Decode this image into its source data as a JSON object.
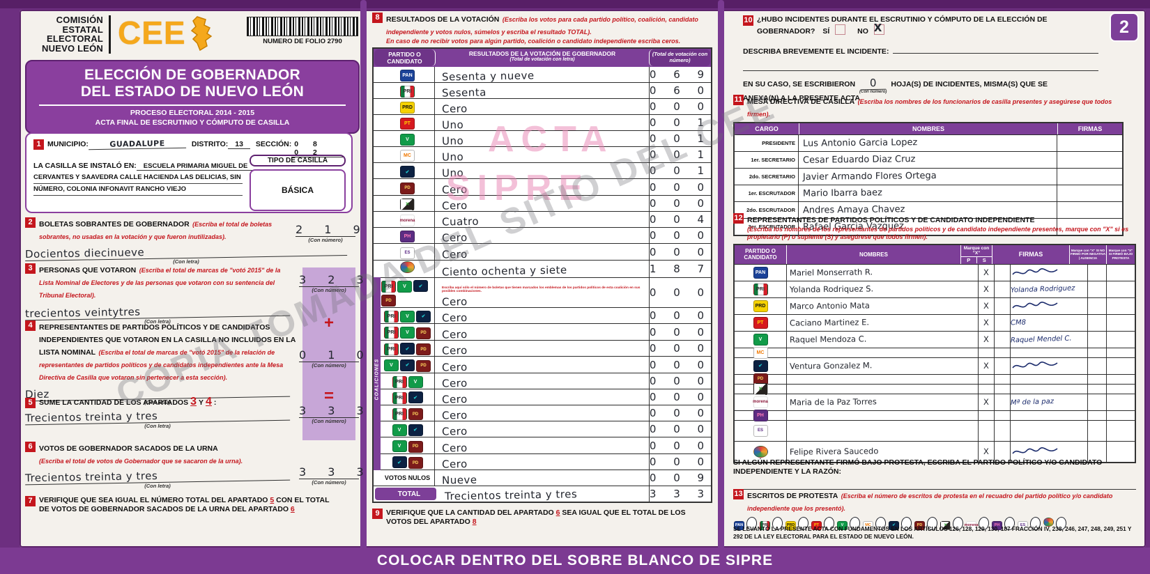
{
  "labels": {
    "con_letra": "(Con letra)",
    "con_numero": "(Con número)"
  },
  "colors": {
    "purple": "#7d3f98",
    "purple_dark": "#5e2170",
    "red": "#c4161d",
    "lilac": "#c7a6d7",
    "orange": "#f5a81c"
  },
  "watermarks": {
    "acta": "ACTA",
    "sipre": "SIPRE",
    "diagonal": "COPIA TOMADA DEL SITIO DEL CEE"
  },
  "page_badge": "2",
  "footer_band": "COLOCAR DENTRO DEL SOBRE BLANCO DE SIPRE",
  "header": {
    "org_name": "COMISIÓN ESTATAL ELECTORAL NUEVO LEÓN",
    "logo_text": "CEE",
    "folio_label": "NUMERO DE FOLIO 2790",
    "title_line1": "ELECCIÓN DE GOBERNADOR",
    "title_line2": "DEL ESTADO DE NUEVO LEÓN",
    "subtitle_line1": "PROCESO ELECTORAL  2014 - 2015",
    "subtitle_line2": "ACTA FINAL DE ESCRUTINIO Y CÓMPUTO DE CASILLA"
  },
  "parties": {
    "pan": {
      "label": "PAN",
      "name": "PAN",
      "color": "#1b4298"
    },
    "pri": {
      "label": "PRI",
      "name": "PRI",
      "color": "#0f7a3d"
    },
    "prd": {
      "label": "PRD",
      "name": "PRD",
      "color": "#f6d200"
    },
    "pt": {
      "label": "PT",
      "name": "PT",
      "color": "#d6191f"
    },
    "verde": {
      "label": "V",
      "name": "VERDE",
      "color": "#119b49"
    },
    "mc": {
      "label": "MC",
      "name": "MOVIMIENTO CIUDADANO",
      "color": "#f07800"
    },
    "alianza": {
      "label": "✔",
      "name": "alian2a",
      "color": "#0c2142"
    },
    "pd": {
      "label": "PD",
      "name": "PARTIDO DEMÓCRATA",
      "color": "#7c1b1b"
    },
    "cc": {
      "label": "✕",
      "name": "CRUZADA CIUDADANA",
      "color": "#26221f"
    },
    "morena": {
      "label": "morena",
      "name": "morena",
      "color": "#8a1538"
    },
    "ph": {
      "label": "PH",
      "name": "HUMANISTA",
      "color": "#5c2d83"
    },
    "es": {
      "label": "ES",
      "name": "ENCUENTRO SOCIAL",
      "color": "#5b2a84"
    },
    "indep": {
      "label": "",
      "name": "CANDIDATO INDEPENDIENTE",
      "color": "#3f9c44"
    }
  },
  "section1": {
    "number": "1",
    "municipio_label": "MUNICIPIO:",
    "municipio_value": "GUADALUPE",
    "distrito_label": "DISTRITO:",
    "distrito_value": "13",
    "seccion_label": "SECCIÓN:",
    "seccion_value": "0 8 0 2",
    "instalada_label": "LA CASILLA SE INSTALÓ EN:",
    "instalada_line1": "ESCUELA PRIMARIA MIGUEL DE",
    "instalada_line2": "CERVANTES Y SAAVEDRA CALLE HACIENDA LAS DELICIAS, SIN",
    "instalada_line3": "NÚMERO, COLONIA INFONAVIT RANCHO VIEJO",
    "tipo_label": "TIPO DE CASILLA",
    "tipo_value": "BÁSICA"
  },
  "section2": {
    "number": "2",
    "title": "BOLETAS SOBRANTES DE GOBERNADOR",
    "instr": "(Escriba el total de boletas sobrantes, no usadas en la votación y que fueron inutilizadas).",
    "letra": "Docientos diecinueve",
    "numero": "2 1 9"
  },
  "section3": {
    "number": "3",
    "title": "PERSONAS QUE VOTARON",
    "instr": "(Escriba el total de marcas de \"votó 2015\" de la Lista Nominal de Electores y de las personas que votaron con su sentencia del Tribunal Electoral).",
    "letra": "trecientos veintytres",
    "numero": "3 2 3"
  },
  "section4": {
    "number": "4",
    "title": "REPRESENTANTES DE PARTIDOS POLÍTICOS Y DE CANDIDATOS INDEPENDIENTES QUE VOTARON EN LA CASILLA NO INCLUIDOS EN LA LISTA NOMINAL",
    "instr": "(Escriba el total de marcas de \"votó 2015\" de la relación de representantes de partidos políticos y de candidatos independientes ante la Mesa Directiva de Casilla que votaron sin pertenecer a esta sección).",
    "letra": "Diez",
    "numero": "0 1 0",
    "plus": "+"
  },
  "section5": {
    "number": "5",
    "title_pre": "SUME LA CANTIDAD DE LOS APARTADOS",
    "ref1": "3",
    "mid": "Y",
    "ref2": "4",
    "colon": ":",
    "letra": "Trecientos treinta y tres",
    "numero": "3 3 3",
    "equals": "="
  },
  "section6": {
    "number": "6",
    "title": "VOTOS DE GOBERNADOR SACADOS DE LA URNA",
    "instr": "(Escriba el total de votos de Gobernador que se sacaron de la urna).",
    "letra": "Trecientos treinta y tres",
    "numero": "3 3 3"
  },
  "section7": {
    "number": "7",
    "text1": "VERIFIQUE QUE SEA IGUAL EL NÚMERO TOTAL DEL APARTADO",
    "ref1": "5",
    "text2": "CON EL TOTAL DE VOTOS DE GOBERNADOR SACADOS DE LA URNA DEL APARTADO",
    "ref2": "6"
  },
  "results": {
    "number": "8",
    "title": "RESULTADOS DE LA VOTACIÓN",
    "instr1": "(Escriba los votos para cada partido político, coalición, candidato independiente y votos nulos, súmelos y escriba el resultado TOTAL).",
    "instr2": "En caso de no recibir votos para algún partido, coalición o candidato independiente escriba ceros.",
    "col1": "PARTIDO O CANDIDATO",
    "col2": "RESULTADOS DE LA VOTACIÓN DE GOBERNADOR",
    "col2_sub": "(Total de votación con letra)",
    "col3": "(Total de votación con número)",
    "coaliciones_label": "COALICIONES",
    "rows": [
      {
        "parties": [
          "pan"
        ],
        "letra": "Sesenta y nueve",
        "numero": "0 6 9"
      },
      {
        "parties": [
          "pri"
        ],
        "letra": "Sesenta",
        "numero": "0 6 0"
      },
      {
        "parties": [
          "prd"
        ],
        "letra": "Cero",
        "numero": "0 0 0"
      },
      {
        "parties": [
          "pt"
        ],
        "letra": "Uno",
        "numero": "0 0 1"
      },
      {
        "parties": [
          "verde"
        ],
        "letra": "Uno",
        "numero": "0 0 1"
      },
      {
        "parties": [
          "mc"
        ],
        "letra": "Uno",
        "numero": "0 0 1"
      },
      {
        "parties": [
          "alianza"
        ],
        "letra": "Uno",
        "numero": "0 0 1"
      },
      {
        "parties": [
          "pd"
        ],
        "letra": "Cero",
        "numero": "0 0 0"
      },
      {
        "parties": [
          "cc"
        ],
        "letra": "Cero",
        "numero": "0 0 0"
      },
      {
        "parties": [
          "morena"
        ],
        "letra": "Cuatro",
        "numero": "0 0 4"
      },
      {
        "parties": [
          "ph"
        ],
        "letra": "Cero",
        "numero": "0 0 0"
      },
      {
        "parties": [
          "es"
        ],
        "letra": "Cero",
        "numero": "0 0 0"
      },
      {
        "parties": [
          "indep"
        ],
        "letra": "Ciento ochenta y siete",
        "numero": "1 8 7"
      },
      {
        "parties": [
          "pri",
          "verde",
          "alianza",
          "pd"
        ],
        "cls": "row-coal",
        "note": "Escriba aquí sólo el número de boletas que tienen marcados los emblemas de los partidos políticos de esta coalición en sus posibles combinaciones.",
        "letra": "Cero",
        "numero": "0 0 0"
      },
      {
        "parties": [
          "pri",
          "verde",
          "alianza"
        ],
        "cls": "row-coal",
        "letra": "Cero",
        "numero": "0 0 0"
      },
      {
        "parties": [
          "pri",
          "verde",
          "pd"
        ],
        "cls": "row-coal",
        "letra": "Cero",
        "numero": "0 0 0"
      },
      {
        "parties": [
          "pri",
          "alianza",
          "pd"
        ],
        "cls": "row-coal",
        "letra": "Cero",
        "numero": "0 0 0"
      },
      {
        "parties": [
          "verde",
          "alianza",
          "pd"
        ],
        "cls": "row-coal",
        "letra": "Cero",
        "numero": "0 0 0"
      },
      {
        "parties": [
          "pri",
          "verde"
        ],
        "cls": "row-coal",
        "letra": "Cero",
        "numero": "0 0 0"
      },
      {
        "parties": [
          "pri",
          "alianza"
        ],
        "cls": "row-coal",
        "letra": "Cero",
        "numero": "0 0 0"
      },
      {
        "parties": [
          "pri",
          "pd"
        ],
        "cls": "row-coal",
        "letra": "Cero",
        "numero": "0 0 0"
      },
      {
        "parties": [
          "verde",
          "alianza"
        ],
        "cls": "row-coal",
        "letra": "Cero",
        "numero": "0 0 0"
      },
      {
        "parties": [
          "verde",
          "pd"
        ],
        "cls": "row-coal",
        "letra": "Cero",
        "numero": "0 0 0"
      },
      {
        "parties": [
          "alianza",
          "pd"
        ],
        "cls": "row-coal",
        "letra": "Cero",
        "numero": "0 0 0"
      },
      {
        "label": "VOTOS NULOS",
        "letra": "Nueve",
        "numero": "0 0 9"
      },
      {
        "label": "TOTAL",
        "cls": "trow",
        "letra": "Trecientos treinta y tres",
        "numero": "3 3 3"
      }
    ]
  },
  "section9": {
    "number": "9",
    "text1": "VERIFIQUE QUE LA CANTIDAD DEL APARTADO",
    "ref1": "6",
    "text2": "SEA IGUAL QUE EL TOTAL DE LOS VOTOS DEL APARTADO",
    "ref2": "8"
  },
  "section10": {
    "number": "10",
    "question": "¿HUBO INCIDENTES DURANTE EL ESCRUTINIO Y CÓMPUTO DE LA ELECCIÓN DE GOBERNADOR?",
    "si": "SÍ",
    "no": "NO",
    "no_mark": "X",
    "describe_label": "DESCRIBA BREVEMENTE EL INCIDENTE:",
    "hojas_pre": "EN SU CASO, SE ESCRIBIERON",
    "hojas_value": "0",
    "hojas_post": "HOJA(S) DE INCIDENTES, MISMA(S) QUE SE",
    "hojas_post2": "ANEXA(N) A LA PRESENTE ACTA."
  },
  "mesa": {
    "number": "11",
    "title": "MESA DIRECTIVA DE CASILLA",
    "instr": "(Escriba los nombres de los funcionarios de casilla presentes y asegúrese que todos firmen).",
    "col1": "CARGO",
    "col2": "NOMBRES",
    "col3": "FIRMAS",
    "rows": [
      {
        "cargo": "PRESIDENTE",
        "nombre": "Lus Antonio Garcia Lopez"
      },
      {
        "cargo": "1er. SECRETARIO",
        "nombre": "Cesar Eduardo Diaz Cruz"
      },
      {
        "cargo": "2do. SECRETARIO",
        "nombre": "Javier Armando Flores Ortega"
      },
      {
        "cargo": "1er. ESCRUTADOR",
        "nombre": "Mario Ibarra baez"
      },
      {
        "cargo": "2do. ESCRUTADOR",
        "nombre": "Andres Amaya Chavez"
      },
      {
        "cargo": "3er. ESCRUTADOR",
        "nombre": "Rafael Garcia Vazquez"
      }
    ]
  },
  "reps": {
    "number": "12",
    "title": "REPRESENTANTES DE PARTIDOS POLÍTICOS Y DE CANDIDATO INDEPENDIENTE",
    "instr": "(Escriba los nombres de los representantes de partidos políticos y de candidato independiente presentes, marque con \"X\" si es propietario (P) o suplente (S) y asegúrese que todos firmen).",
    "col1": "PARTIDO O CANDIDATO",
    "col2": "NOMBRES",
    "colx": "Marque con \"X\"",
    "colp": "P",
    "cols": "S",
    "colf": "FIRMAS",
    "coln": "Marque con \"X\" SI NO FIRMÓ POR NEGATIVA | AUSENCIA",
    "colpr": "Marque con \"X\" SI FIRMÓ BAJO PROTESTA",
    "rows": [
      {
        "parties": [
          "pan"
        ],
        "nombre": "Mariel Monserrath R.",
        "p": "X",
        "scribble": true
      },
      {
        "parties": [
          "pri"
        ],
        "nombre": "Yolanda Rodriquez S.",
        "p": "X",
        "firma": "Yolanda Rodriguez"
      },
      {
        "parties": [
          "prd"
        ],
        "nombre": "Marco Antonio Mata",
        "p": "X",
        "scribble": true
      },
      {
        "parties": [
          "pt"
        ],
        "nombre": "Caciano Martinez E.",
        "p": "X",
        "firma": "CM8"
      },
      {
        "parties": [
          "verde"
        ],
        "nombre": "Raquel Mendoza C.",
        "p": "X",
        "firma": "Raquel Mendel C."
      },
      {
        "parties": [
          "mc"
        ],
        "cls": "thin"
      },
      {
        "parties": [
          "alianza"
        ],
        "nombre": "Ventura Gonzalez M.",
        "p": "X",
        "scribble": true
      },
      {
        "parties": [
          "pd"
        ],
        "cls": "thin"
      },
      {
        "parties": [
          "cc"
        ],
        "cls": "thin"
      },
      {
        "parties": [
          "morena"
        ],
        "nombre": "Maria de la Paz Torres",
        "p": "X",
        "firma": "Mª de la paz"
      },
      {
        "parties": [
          "ph"
        ],
        "cls": "thin"
      },
      {
        "parties": [
          "es"
        ],
        "cls": "tall"
      },
      {
        "parties": [
          "indep"
        ],
        "nombre": "Felipe Rivera Saucedo",
        "p": "X",
        "scribble": true,
        "cls": "tall"
      }
    ],
    "protesta_note": "SI ALGÚN REPRESENTANTE FIRMÓ BAJO PROTESTA, ESCRIBA EL PARTIDO POLÍTICO Y/O CANDIDATO INDEPENDIENTE Y LA RAZÓN:"
  },
  "section13": {
    "number": "13",
    "title": "ESCRITOS DE PROTESTA",
    "instr": "(Escriba el número de escritos de protesta en el recuadro del partido político y/o candidato independiente que los presentó).",
    "items": [
      {
        "parties": [
          "pan"
        ]
      },
      {
        "parties": [
          "pri"
        ]
      },
      {
        "parties": [
          "prd"
        ]
      },
      {
        "parties": [
          "pt"
        ]
      },
      {
        "parties": [
          "verde"
        ]
      },
      {
        "parties": [
          "mc"
        ]
      },
      {
        "parties": [
          "alianza"
        ]
      },
      {
        "parties": [
          "pd"
        ]
      },
      {
        "parties": [
          "cc"
        ]
      },
      {
        "parties": [
          "morena"
        ]
      },
      {
        "parties": [
          "ph"
        ]
      },
      {
        "parties": [
          "es"
        ]
      },
      {
        "parties": [
          "indep"
        ]
      }
    ]
  },
  "legal": "SE LEVANTÓ LA PRESENTE ACTA CON FUNDAMENTOS EN LOS ARTÍCULOS 126, 128, 129, 130, 187 FRACCIÓN IV, 238, 246, 247, 248, 249, 251 Y 292 DE LA LEY ELECTORAL PARA EL ESTADO DE NUEVO LEÓN."
}
